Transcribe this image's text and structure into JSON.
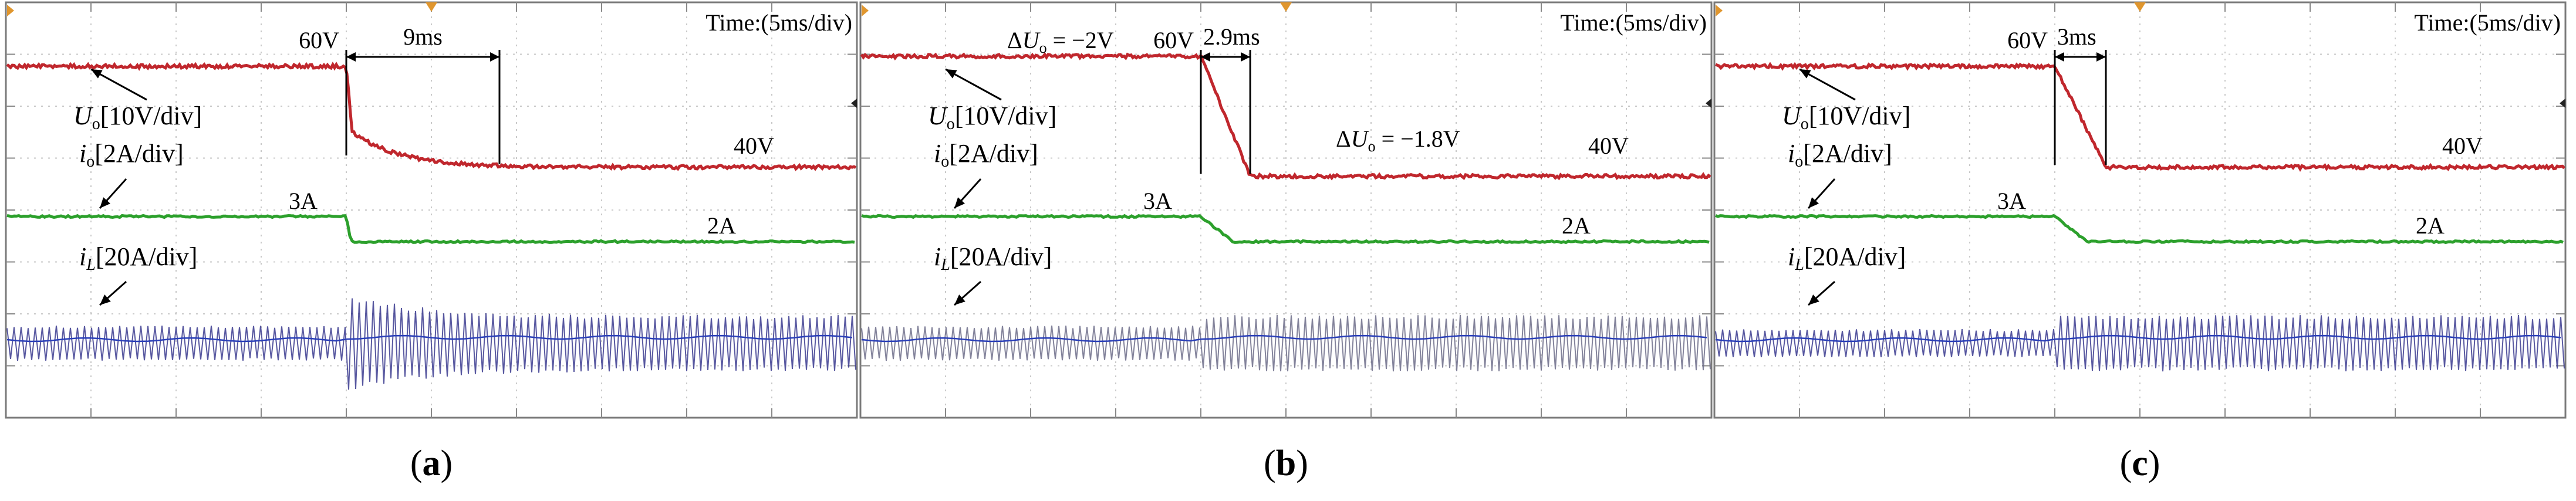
{
  "figure": {
    "panels": [
      {
        "id": "a",
        "caption": "(a)",
        "time_scale": "Time:(5ms/div)",
        "channel_labels": {
          "uo": "[10V/div]",
          "io": "[2A/div]",
          "il": "[20A/div]"
        },
        "annotations": {
          "v_high": "60V",
          "v_low": "40V",
          "i_high": "3A",
          "i_low": "2A",
          "recovery": "9ms",
          "dv1": "",
          "dv2": ""
        }
      },
      {
        "id": "b",
        "caption": "(b)",
        "time_scale": "Time:(5ms/div)",
        "channel_labels": {
          "uo": "[10V/div]",
          "io": "[2A/div]",
          "il": "[20A/div]"
        },
        "annotations": {
          "v_high": "60V",
          "v_low": "40V",
          "i_high": "3A",
          "i_low": "2A",
          "recovery": "2.9ms",
          "dv1": "= −2V",
          "dv2": "= −1.8V"
        }
      },
      {
        "id": "c",
        "caption": "(c)",
        "time_scale": "Time:(5ms/div)",
        "channel_labels": {
          "uo": "[10V/div]",
          "io": "[2A/div]",
          "il": "[20A/div]"
        },
        "annotations": {
          "v_high": "60V",
          "v_low": "40V",
          "i_high": "3A",
          "i_low": "2A",
          "recovery": "3ms",
          "dv1": "",
          "dv2": ""
        }
      }
    ]
  },
  "chart_data": [
    {
      "type": "line",
      "title": "(a)",
      "x_unit": "ms",
      "x_scale": "5ms/div",
      "step_time_ms": 20,
      "series": [
        {
          "name": "Uo",
          "scale": "10V/div",
          "unit": "V",
          "before": 60,
          "after": 40,
          "settling_ms": 9,
          "color": "#c0272d",
          "shape": "drop-tail"
        },
        {
          "name": "io",
          "scale": "2A/div",
          "unit": "A",
          "before": 3,
          "after": 2,
          "color": "#2ca02c"
        },
        {
          "name": "iL",
          "scale": "20A/div",
          "unit": "A",
          "ripple_before": "narrow",
          "ripple_after": "wide",
          "color": "#3b3b8f"
        }
      ]
    },
    {
      "type": "line",
      "title": "(b)",
      "x_unit": "ms",
      "x_scale": "5ms/div",
      "step_time_ms": 20,
      "series": [
        {
          "name": "Uo",
          "scale": "10V/div",
          "unit": "V",
          "before": 60,
          "after": 40,
          "settling_ms": 2.9,
          "delta_before": -2,
          "delta_after": -1.8,
          "color": "#c0272d",
          "shape": "ramp"
        },
        {
          "name": "io",
          "scale": "2A/div",
          "unit": "A",
          "before": 3,
          "after": 2,
          "color": "#2ca02c"
        },
        {
          "name": "iL",
          "scale": "20A/div",
          "unit": "A",
          "ripple_before": "narrow",
          "ripple_after": "wide",
          "color": "#3b3b8f"
        }
      ]
    },
    {
      "type": "line",
      "title": "(c)",
      "x_unit": "ms",
      "x_scale": "5ms/div",
      "step_time_ms": 20,
      "series": [
        {
          "name": "Uo",
          "scale": "10V/div",
          "unit": "V",
          "before": 60,
          "after": 40,
          "settling_ms": 3,
          "color": "#c0272d",
          "shape": "ramp"
        },
        {
          "name": "io",
          "scale": "2A/div",
          "unit": "A",
          "before": 3,
          "after": 2,
          "color": "#2ca02c"
        },
        {
          "name": "iL",
          "scale": "20A/div",
          "unit": "A",
          "ripple_before": "narrow",
          "ripple_after": "wide",
          "color": "#3b3b8f"
        }
      ]
    }
  ]
}
